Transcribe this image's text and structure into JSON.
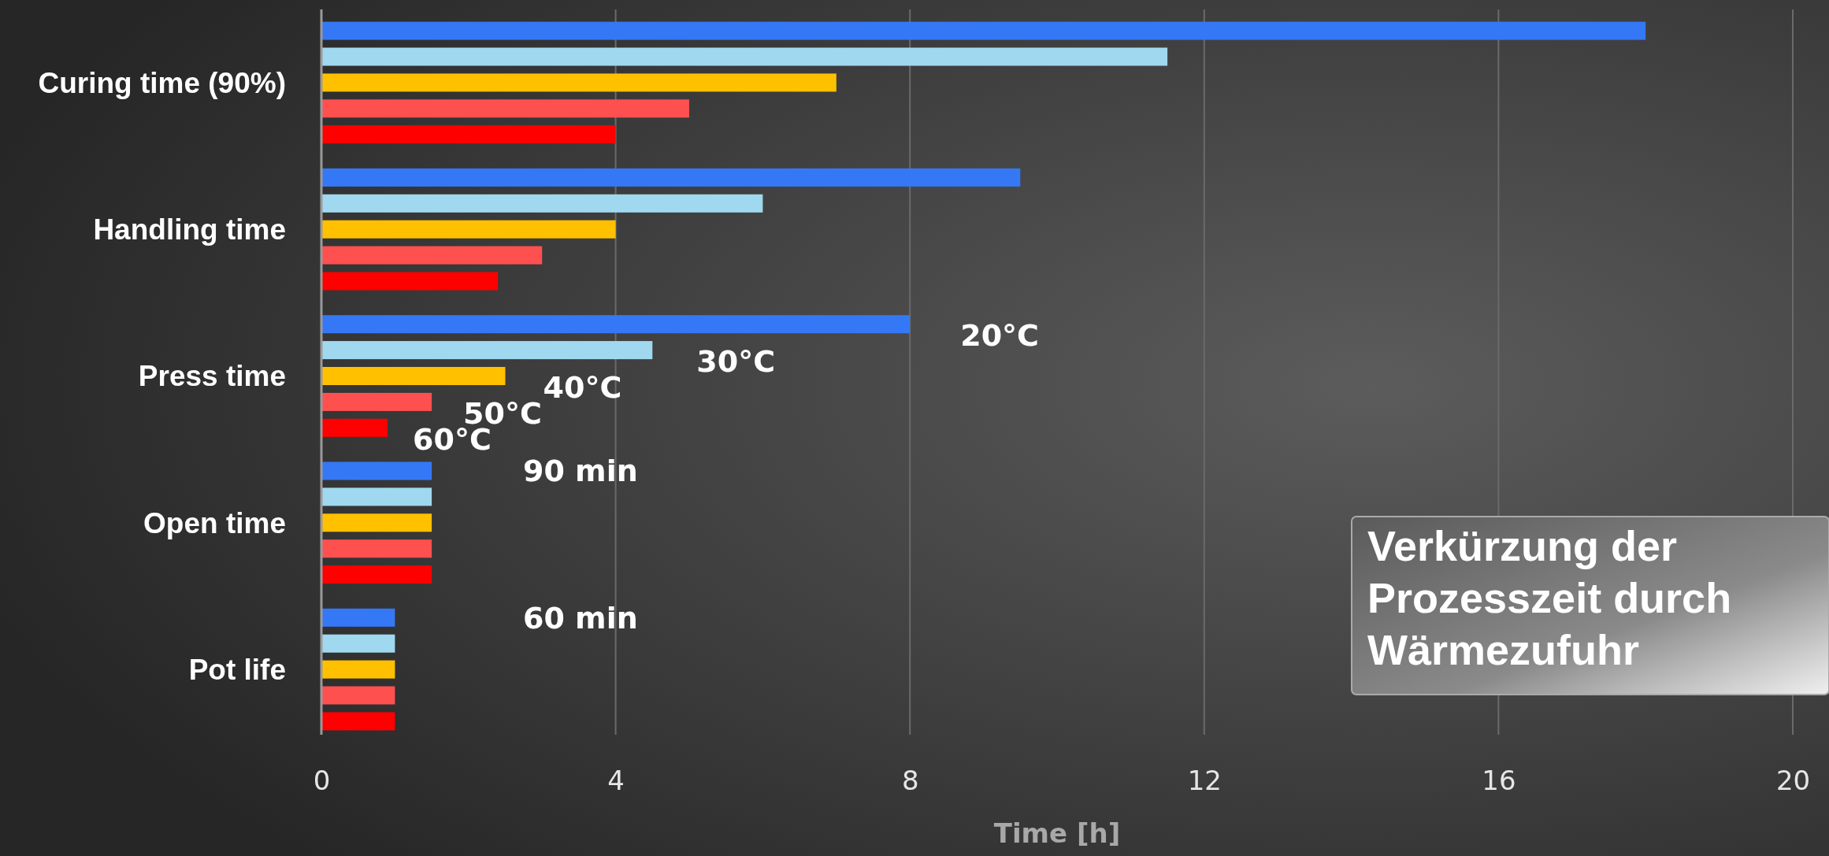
{
  "chart_data": {
    "type": "bar",
    "orientation": "horizontal",
    "xlabel": "Time [h]",
    "categories": [
      "Curing time (90%)",
      "Handling time",
      "Press time",
      "Open time",
      "Pot life"
    ],
    "series": [
      {
        "name": "20°C",
        "color": "#3478f6",
        "values": [
          18,
          9.5,
          8,
          1.5,
          1
        ]
      },
      {
        "name": "30°C",
        "color": "#a0d8ef",
        "values": [
          11.5,
          6,
          4.5,
          1.5,
          1
        ]
      },
      {
        "name": "40°C",
        "color": "#ffc000",
        "values": [
          7,
          4,
          2.5,
          1.5,
          1
        ]
      },
      {
        "name": "50°C",
        "color": "#ff5050",
        "values": [
          5,
          3,
          1.5,
          1.5,
          1
        ]
      },
      {
        "name": "60°C",
        "color": "#ff0000",
        "values": [
          4,
          2.4,
          0.9,
          1.5,
          1
        ]
      }
    ],
    "xlim": [
      0,
      20
    ],
    "xticks": [
      0,
      4,
      8,
      12,
      16,
      20
    ],
    "grid": "x",
    "legend": false,
    "annotations": [
      "90 min",
      "60 min",
      "Verkürzung der Prozesszeit durch Wärmezufuhr"
    ]
  }
}
